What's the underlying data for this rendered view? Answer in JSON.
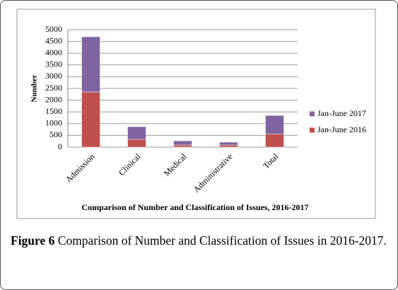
{
  "chart_data": {
    "type": "stacked_bar",
    "title": "Comparison of Number and Classification  of Issues, 2016-2017",
    "y_label": "Number",
    "categories": [
      "Admission",
      "Clinical",
      "Medical",
      "Administrative",
      "Total"
    ],
    "series": [
      {
        "name": "Jan-June 2016",
        "color": "#c0504d",
        "values": [
          2350,
          330,
          90,
          90,
          550
        ]
      },
      {
        "name": "Jan-June 2017",
        "color": "#8064a2",
        "values": [
          2350,
          540,
          180,
          120,
          800
        ]
      }
    ],
    "ylim": [
      0,
      5000
    ],
    "yticks": [
      0,
      500,
      1000,
      1500,
      2000,
      2500,
      3000,
      3500,
      4000,
      4500,
      5000
    ],
    "grid": true,
    "legend": "right"
  },
  "caption": {
    "label": "Figure 6",
    "text": "Comparison of Number and Classification of Issues in 2016-2017."
  }
}
